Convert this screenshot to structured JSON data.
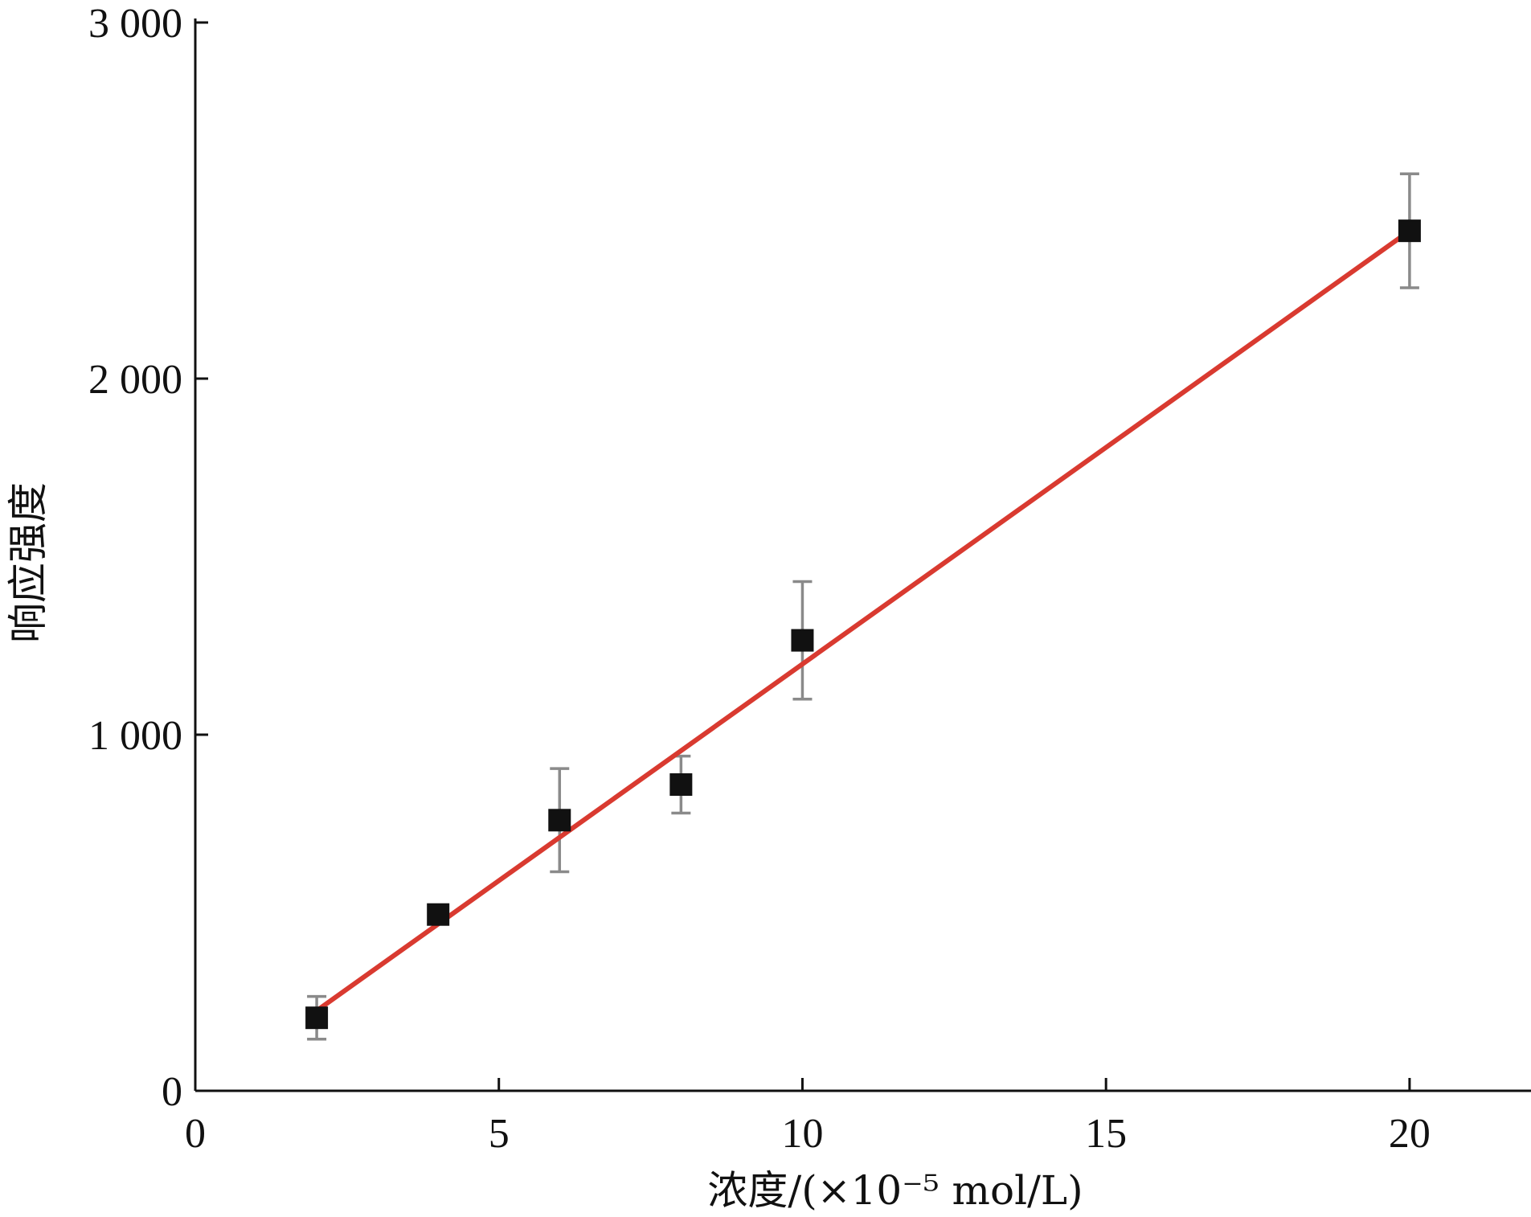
{
  "chart_data": {
    "type": "scatter",
    "title": "",
    "xlabel": "浓度/(×10⁻⁵ mol/L)",
    "ylabel": "响应强度",
    "xlim": [
      0,
      22
    ],
    "ylim": [
      0,
      3000
    ],
    "xticks": [
      0,
      5,
      10,
      15,
      20
    ],
    "xtick_labels": [
      "0",
      "5",
      "10",
      "15",
      "20"
    ],
    "yticks": [
      0,
      1000,
      2000,
      3000
    ],
    "ytick_labels": [
      "0",
      "1 000",
      "2 000",
      "3 000"
    ],
    "grid": false,
    "series": [
      {
        "x": [
          2,
          4,
          6,
          8,
          10,
          20
        ],
        "y": [
          205,
          495,
          760,
          860,
          1265,
          2415
        ],
        "yerr": [
          60,
          20,
          145,
          80,
          165,
          160
        ],
        "marker": "square",
        "color": "#111111"
      }
    ],
    "fit_line": {
      "type": "linear",
      "x": [
        2,
        20
      ],
      "y": [
        225,
        2415
      ],
      "color": "#d93a30"
    }
  }
}
